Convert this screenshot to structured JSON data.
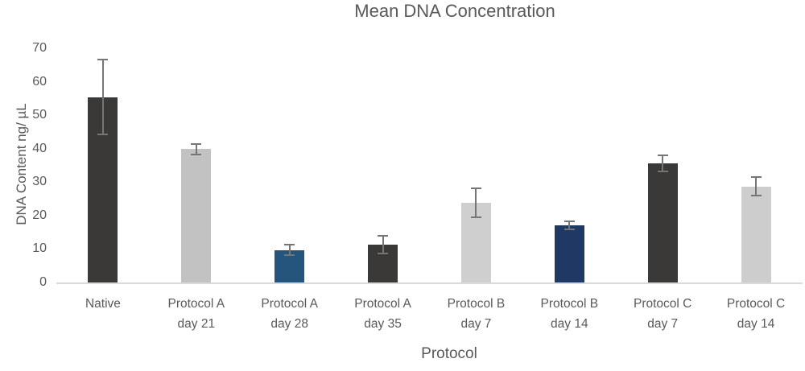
{
  "chart_data": {
    "type": "bar",
    "title": "Mean DNA Concentration",
    "xlabel": "Protocol",
    "ylabel": "DNA Content ng/ µL",
    "ylim": [
      0,
      70
    ],
    "ytick_step": 10,
    "ytick_labels": [
      "0",
      "10",
      "20",
      "30",
      "40",
      "50",
      "60",
      "70"
    ],
    "grid": false,
    "legend": "none",
    "error_bars": true,
    "categories": [
      [
        "Native"
      ],
      [
        "Protocol A",
        "day 21"
      ],
      [
        "Protocol A",
        "day 28"
      ],
      [
        "Protocol A",
        "day 35"
      ],
      [
        "Protocol B",
        "day 7"
      ],
      [
        "Protocol B",
        "day 14"
      ],
      [
        "Protocol C",
        "day 7"
      ],
      [
        "Protocol C",
        "day 14"
      ]
    ],
    "values": [
      55.4,
      39.9,
      9.7,
      11.3,
      23.8,
      17.1,
      35.6,
      28.7
    ],
    "errors": [
      11.0,
      1.3,
      1.3,
      2.5,
      4.0,
      0.9,
      2.2,
      2.6
    ],
    "bar_colors": [
      "#3B3838",
      "#C2C2C2",
      "#25547C",
      "#3B3838",
      "#CFCFCF",
      "#1F3864",
      "#3B3838",
      "#CDCDCD"
    ],
    "colors": {
      "axis_line": "#D9D9D9",
      "text": "#595959",
      "error_bar": "#757575",
      "background": "#FFFFFF"
    }
  }
}
